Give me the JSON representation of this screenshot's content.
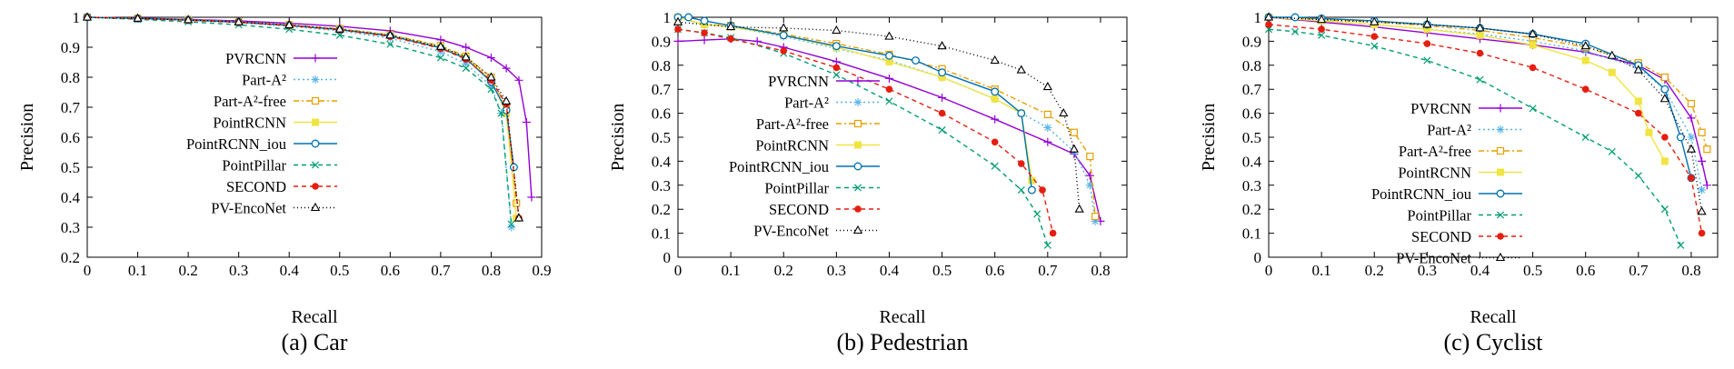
{
  "chart_data": [
    {
      "type": "line",
      "caption": "(a)  Car",
      "xlabel": "Recall",
      "ylabel": "Precision",
      "xlim": [
        0,
        0.9
      ],
      "ylim": [
        0.2,
        1.0
      ],
      "xticks": [
        "0",
        "0.1",
        "0.2",
        "0.3",
        "0.4",
        "0.5",
        "0.6",
        "0.7",
        "0.8",
        "0.9"
      ],
      "yticks": [
        "0.2",
        "0.3",
        "0.4",
        "0.5",
        "0.6",
        "0.7",
        "0.8",
        "0.9",
        "1"
      ],
      "grid": false,
      "legend_position": "right-middle",
      "series": [
        {
          "name": "PVRCNN",
          "x": [
            0,
            0.1,
            0.2,
            0.3,
            0.4,
            0.5,
            0.6,
            0.7,
            0.75,
            0.8,
            0.83,
            0.855,
            0.87,
            0.88
          ],
          "y": [
            1,
            0.997,
            0.993,
            0.988,
            0.98,
            0.97,
            0.955,
            0.925,
            0.9,
            0.865,
            0.83,
            0.79,
            0.65,
            0.4
          ]
        },
        {
          "name": "Part-A²",
          "x": [
            0,
            0.1,
            0.2,
            0.3,
            0.4,
            0.5,
            0.6,
            0.7,
            0.75,
            0.8,
            0.82,
            0.84
          ],
          "y": [
            1,
            0.995,
            0.99,
            0.982,
            0.97,
            0.955,
            0.93,
            0.885,
            0.845,
            0.77,
            0.68,
            0.3
          ]
        },
        {
          "name": "Part-A²-free",
          "x": [
            0,
            0.1,
            0.2,
            0.3,
            0.4,
            0.5,
            0.6,
            0.7,
            0.75,
            0.8,
            0.83,
            0.85
          ],
          "y": [
            1,
            0.996,
            0.992,
            0.985,
            0.975,
            0.962,
            0.942,
            0.905,
            0.87,
            0.8,
            0.7,
            0.38
          ]
        },
        {
          "name": "PointRCNN",
          "x": [
            0,
            0.1,
            0.2,
            0.3,
            0.4,
            0.5,
            0.6,
            0.7,
            0.75,
            0.8,
            0.83,
            0.85
          ],
          "y": [
            1,
            0.996,
            0.991,
            0.984,
            0.973,
            0.96,
            0.94,
            0.9,
            0.865,
            0.79,
            0.68,
            0.33
          ]
        },
        {
          "name": "PointRCNN_iou",
          "x": [
            0,
            0.1,
            0.2,
            0.3,
            0.4,
            0.5,
            0.6,
            0.7,
            0.75,
            0.8,
            0.83,
            0.845
          ],
          "y": [
            1,
            0.996,
            0.991,
            0.984,
            0.973,
            0.959,
            0.938,
            0.898,
            0.862,
            0.785,
            0.69,
            0.5
          ]
        },
        {
          "name": "PointPillar",
          "x": [
            0,
            0.1,
            0.2,
            0.3,
            0.4,
            0.5,
            0.6,
            0.7,
            0.75,
            0.8,
            0.82,
            0.84
          ],
          "y": [
            1,
            0.993,
            0.985,
            0.975,
            0.96,
            0.94,
            0.91,
            0.865,
            0.83,
            0.76,
            0.68,
            0.31
          ]
        },
        {
          "name": "SECOND",
          "x": [
            0,
            0.1,
            0.2,
            0.3,
            0.4,
            0.5,
            0.6,
            0.7,
            0.75,
            0.8,
            0.83,
            0.855
          ],
          "y": [
            1,
            0.996,
            0.99,
            0.983,
            0.972,
            0.958,
            0.936,
            0.896,
            0.86,
            0.79,
            0.71,
            0.33
          ]
        },
        {
          "name": "PV-EncoNet",
          "x": [
            0,
            0.1,
            0.2,
            0.3,
            0.4,
            0.5,
            0.6,
            0.7,
            0.75,
            0.8,
            0.83,
            0.855
          ],
          "y": [
            1,
            0.996,
            0.991,
            0.984,
            0.974,
            0.96,
            0.94,
            0.902,
            0.867,
            0.8,
            0.72,
            0.33
          ]
        }
      ]
    },
    {
      "type": "line",
      "caption": "(b)  Pedestrian",
      "xlabel": "Recall",
      "ylabel": "Precision",
      "xlim": [
        0,
        0.85
      ],
      "ylim": [
        0,
        1.0
      ],
      "xticks": [
        "0",
        "0.1",
        "0.2",
        "0.3",
        "0.4",
        "0.5",
        "0.6",
        "0.7",
        "0.8"
      ],
      "yticks": [
        "0",
        "0.1",
        "0.2",
        "0.3",
        "0.4",
        "0.5",
        "0.6",
        "0.7",
        "0.8",
        "0.9",
        "1"
      ],
      "grid": false,
      "legend_position": "left-middle",
      "series": [
        {
          "name": "PVRCNN",
          "x": [
            0,
            0.05,
            0.1,
            0.15,
            0.2,
            0.3,
            0.4,
            0.5,
            0.6,
            0.7,
            0.75,
            0.78,
            0.8
          ],
          "y": [
            0.9,
            0.905,
            0.91,
            0.9,
            0.875,
            0.815,
            0.745,
            0.665,
            0.575,
            0.48,
            0.43,
            0.34,
            0.15
          ]
        },
        {
          "name": "Part-A²",
          "x": [
            0,
            0.05,
            0.1,
            0.2,
            0.3,
            0.4,
            0.5,
            0.6,
            0.7,
            0.75,
            0.78,
            0.79
          ],
          "y": [
            1,
            0.97,
            0.96,
            0.92,
            0.87,
            0.82,
            0.75,
            0.66,
            0.54,
            0.44,
            0.3,
            0.15
          ]
        },
        {
          "name": "Part-A²-free",
          "x": [
            0,
            0.05,
            0.1,
            0.2,
            0.3,
            0.4,
            0.5,
            0.6,
            0.7,
            0.75,
            0.78,
            0.79
          ],
          "y": [
            1,
            0.97,
            0.965,
            0.93,
            0.89,
            0.845,
            0.785,
            0.7,
            0.595,
            0.52,
            0.42,
            0.17
          ]
        },
        {
          "name": "PointRCNN",
          "x": [
            0,
            0.05,
            0.1,
            0.2,
            0.3,
            0.4,
            0.5,
            0.6,
            0.65,
            0.67
          ],
          "y": [
            1,
            0.97,
            0.96,
            0.925,
            0.875,
            0.815,
            0.75,
            0.66,
            0.6,
            0.32
          ]
        },
        {
          "name": "PointRCNN_iou",
          "x": [
            0,
            0.02,
            0.05,
            0.1,
            0.2,
            0.3,
            0.4,
            0.45,
            0.5,
            0.6,
            0.65,
            0.67
          ],
          "y": [
            1,
            1.0,
            0.985,
            0.965,
            0.925,
            0.88,
            0.84,
            0.82,
            0.77,
            0.69,
            0.6,
            0.28
          ]
        },
        {
          "name": "PointPillar",
          "x": [
            0,
            0.05,
            0.1,
            0.2,
            0.3,
            0.4,
            0.5,
            0.6,
            0.65,
            0.68,
            0.7
          ],
          "y": [
            0.95,
            0.935,
            0.915,
            0.85,
            0.76,
            0.65,
            0.53,
            0.38,
            0.28,
            0.18,
            0.05
          ]
        },
        {
          "name": "SECOND",
          "x": [
            0,
            0.05,
            0.1,
            0.2,
            0.3,
            0.4,
            0.5,
            0.6,
            0.65,
            0.69,
            0.71
          ],
          "y": [
            0.95,
            0.935,
            0.91,
            0.86,
            0.79,
            0.7,
            0.6,
            0.48,
            0.39,
            0.28,
            0.1
          ]
        },
        {
          "name": "PV-EncoNet",
          "x": [
            0,
            0.1,
            0.2,
            0.3,
            0.4,
            0.5,
            0.6,
            0.65,
            0.7,
            0.73,
            0.75,
            0.76
          ],
          "y": [
            0.98,
            0.96,
            0.955,
            0.945,
            0.92,
            0.88,
            0.82,
            0.78,
            0.71,
            0.6,
            0.45,
            0.2
          ]
        }
      ]
    },
    {
      "type": "line",
      "caption": "(c)  Cyclist",
      "xlabel": "Recall",
      "ylabel": "Precision",
      "xlim": [
        0,
        0.85
      ],
      "ylim": [
        0,
        1.0
      ],
      "xticks": [
        "0",
        "0.1",
        "0.2",
        "0.3",
        "0.4",
        "0.5",
        "0.6",
        "0.7",
        "0.8"
      ],
      "yticks": [
        "0",
        "0.1",
        "0.2",
        "0.3",
        "0.4",
        "0.5",
        "0.6",
        "0.7",
        "0.8",
        "0.9",
        "1"
      ],
      "grid": false,
      "legend_position": "left-middle",
      "series": [
        {
          "name": "PVRCNN",
          "x": [
            0,
            0.1,
            0.2,
            0.3,
            0.4,
            0.5,
            0.6,
            0.7,
            0.75,
            0.8,
            0.82,
            0.83
          ],
          "y": [
            1,
            0.98,
            0.96,
            0.935,
            0.91,
            0.885,
            0.855,
            0.8,
            0.74,
            0.58,
            0.4,
            0.3
          ]
        },
        {
          "name": "Part-A²",
          "x": [
            0,
            0.1,
            0.2,
            0.3,
            0.4,
            0.5,
            0.6,
            0.7,
            0.75,
            0.8,
            0.82
          ],
          "y": [
            1,
            0.985,
            0.97,
            0.95,
            0.93,
            0.9,
            0.86,
            0.79,
            0.7,
            0.5,
            0.28
          ]
        },
        {
          "name": "Part-A²-free",
          "x": [
            0,
            0.1,
            0.2,
            0.3,
            0.4,
            0.5,
            0.6,
            0.7,
            0.75,
            0.8,
            0.82,
            0.83
          ],
          "y": [
            1,
            0.99,
            0.98,
            0.965,
            0.945,
            0.915,
            0.875,
            0.81,
            0.75,
            0.64,
            0.52,
            0.45
          ]
        },
        {
          "name": "PointRCNN",
          "x": [
            0,
            0.1,
            0.2,
            0.3,
            0.4,
            0.5,
            0.6,
            0.65,
            0.7,
            0.72,
            0.75
          ],
          "y": [
            1,
            0.985,
            0.97,
            0.95,
            0.925,
            0.885,
            0.82,
            0.77,
            0.65,
            0.52,
            0.4
          ]
        },
        {
          "name": "PointRCNN_iou",
          "x": [
            0,
            0.05,
            0.1,
            0.2,
            0.3,
            0.4,
            0.5,
            0.6,
            0.7,
            0.75,
            0.78,
            0.8
          ],
          "y": [
            1,
            1.0,
            0.995,
            0.985,
            0.97,
            0.955,
            0.93,
            0.89,
            0.8,
            0.7,
            0.5,
            0.33
          ]
        },
        {
          "name": "PointPillar",
          "x": [
            0,
            0.05,
            0.1,
            0.2,
            0.3,
            0.4,
            0.5,
            0.6,
            0.65,
            0.7,
            0.75,
            0.78
          ],
          "y": [
            0.95,
            0.94,
            0.925,
            0.88,
            0.82,
            0.74,
            0.62,
            0.5,
            0.44,
            0.34,
            0.2,
            0.05
          ]
        },
        {
          "name": "SECOND",
          "x": [
            0,
            0.1,
            0.2,
            0.3,
            0.4,
            0.5,
            0.6,
            0.7,
            0.75,
            0.8,
            0.82
          ],
          "y": [
            0.97,
            0.95,
            0.92,
            0.89,
            0.85,
            0.79,
            0.7,
            0.6,
            0.5,
            0.33,
            0.1
          ]
        },
        {
          "name": "PV-EncoNet",
          "x": [
            0,
            0.1,
            0.2,
            0.3,
            0.4,
            0.5,
            0.6,
            0.65,
            0.7,
            0.75,
            0.8,
            0.82
          ],
          "y": [
            1,
            0.99,
            0.98,
            0.97,
            0.955,
            0.93,
            0.88,
            0.84,
            0.78,
            0.66,
            0.45,
            0.19
          ]
        }
      ]
    }
  ],
  "styles": [
    {
      "color": "#9400d3",
      "marker": "plus",
      "dash": ""
    },
    {
      "color": "#56b4e9",
      "marker": "asterisk",
      "dash": "2,3"
    },
    {
      "color": "#e69f00",
      "marker": "square-open",
      "dash": "6,3,2,3"
    },
    {
      "color": "#f0e442",
      "marker": "square-fill",
      "dash": ""
    },
    {
      "color": "#0072b2",
      "marker": "circle-open",
      "dash": ""
    },
    {
      "color": "#009e73",
      "marker": "cross",
      "dash": "5,4"
    },
    {
      "color": "#e51e10",
      "marker": "circle-fill",
      "dash": "5,4"
    },
    {
      "color": "#000000",
      "marker": "triangle-open",
      "dash": "1,3"
    }
  ]
}
